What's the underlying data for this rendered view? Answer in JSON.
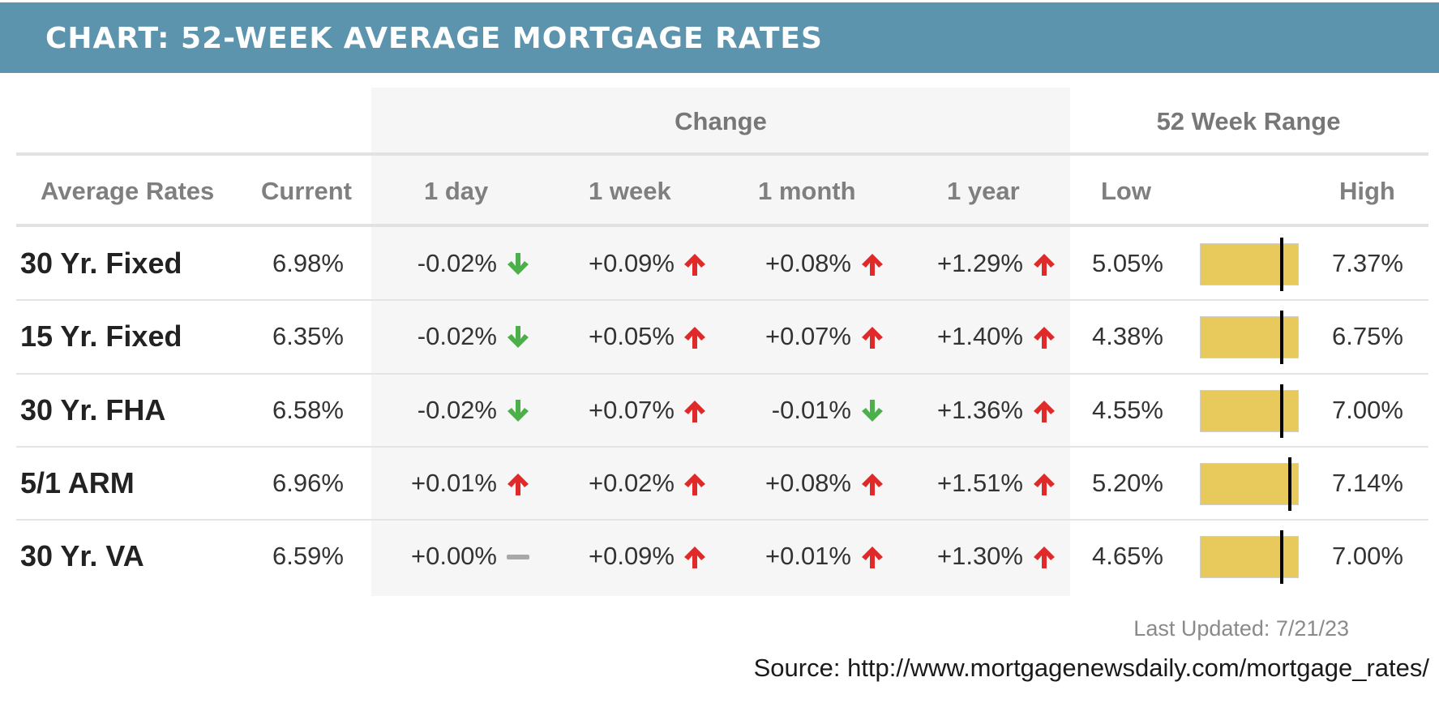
{
  "title": "CHART: 52-WEEK AVERAGE MORTGAGE RATES",
  "colors": {
    "header_bg": "#5b94ac",
    "up_arrow": "#e02a2a",
    "down_arrow": "#4cb04a",
    "flat": "#a8a8a8",
    "range_bar": "#e8c95b"
  },
  "group_headers": {
    "change": "Change",
    "range": "52 Week Range"
  },
  "columns": {
    "average_rates": "Average Rates",
    "current": "Current",
    "day": "1 day",
    "week": "1 week",
    "month": "1 month",
    "year": "1 year",
    "low": "Low",
    "high": "High"
  },
  "chart_data": {
    "type": "table",
    "title": "CHART: 52-WEEK AVERAGE MORTGAGE RATES",
    "rows": [
      {
        "name": "30 Yr. Fixed",
        "current": "6.98%",
        "changes": [
          {
            "text": "-0.02%",
            "dir": "down"
          },
          {
            "text": "+0.09%",
            "dir": "up"
          },
          {
            "text": "+0.08%",
            "dir": "up"
          },
          {
            "text": "+1.29%",
            "dir": "up"
          }
        ],
        "low": "5.05%",
        "high": "7.37%",
        "current_value": 6.98,
        "low_value": 5.05,
        "high_value": 7.37
      },
      {
        "name": "15 Yr. Fixed",
        "current": "6.35%",
        "changes": [
          {
            "text": "-0.02%",
            "dir": "down"
          },
          {
            "text": "+0.05%",
            "dir": "up"
          },
          {
            "text": "+0.07%",
            "dir": "up"
          },
          {
            "text": "+1.40%",
            "dir": "up"
          }
        ],
        "low": "4.38%",
        "high": "6.75%",
        "current_value": 6.35,
        "low_value": 4.38,
        "high_value": 6.75
      },
      {
        "name": "30 Yr. FHA",
        "current": "6.58%",
        "changes": [
          {
            "text": "-0.02%",
            "dir": "down"
          },
          {
            "text": "+0.07%",
            "dir": "up"
          },
          {
            "text": "-0.01%",
            "dir": "down"
          },
          {
            "text": "+1.36%",
            "dir": "up"
          }
        ],
        "low": "4.55%",
        "high": "7.00%",
        "current_value": 6.58,
        "low_value": 4.55,
        "high_value": 7.0
      },
      {
        "name": "5/1 ARM",
        "current": "6.96%",
        "changes": [
          {
            "text": "+0.01%",
            "dir": "up"
          },
          {
            "text": "+0.02%",
            "dir": "up"
          },
          {
            "text": "+0.08%",
            "dir": "up"
          },
          {
            "text": "+1.51%",
            "dir": "up"
          }
        ],
        "low": "5.20%",
        "high": "7.14%",
        "current_value": 6.96,
        "low_value": 5.2,
        "high_value": 7.14
      },
      {
        "name": "30 Yr. VA",
        "current": "6.59%",
        "changes": [
          {
            "text": "+0.00%",
            "dir": "flat"
          },
          {
            "text": "+0.09%",
            "dir": "up"
          },
          {
            "text": "+0.01%",
            "dir": "up"
          },
          {
            "text": "+1.30%",
            "dir": "up"
          }
        ],
        "low": "4.65%",
        "high": "7.00%",
        "current_value": 6.59,
        "low_value": 4.65,
        "high_value": 7.0
      }
    ]
  },
  "footer": {
    "updated": "Last Updated: 7/21/23",
    "source": "Source: http://www.mortgagenewsdaily.com/mortgage_rates/"
  }
}
